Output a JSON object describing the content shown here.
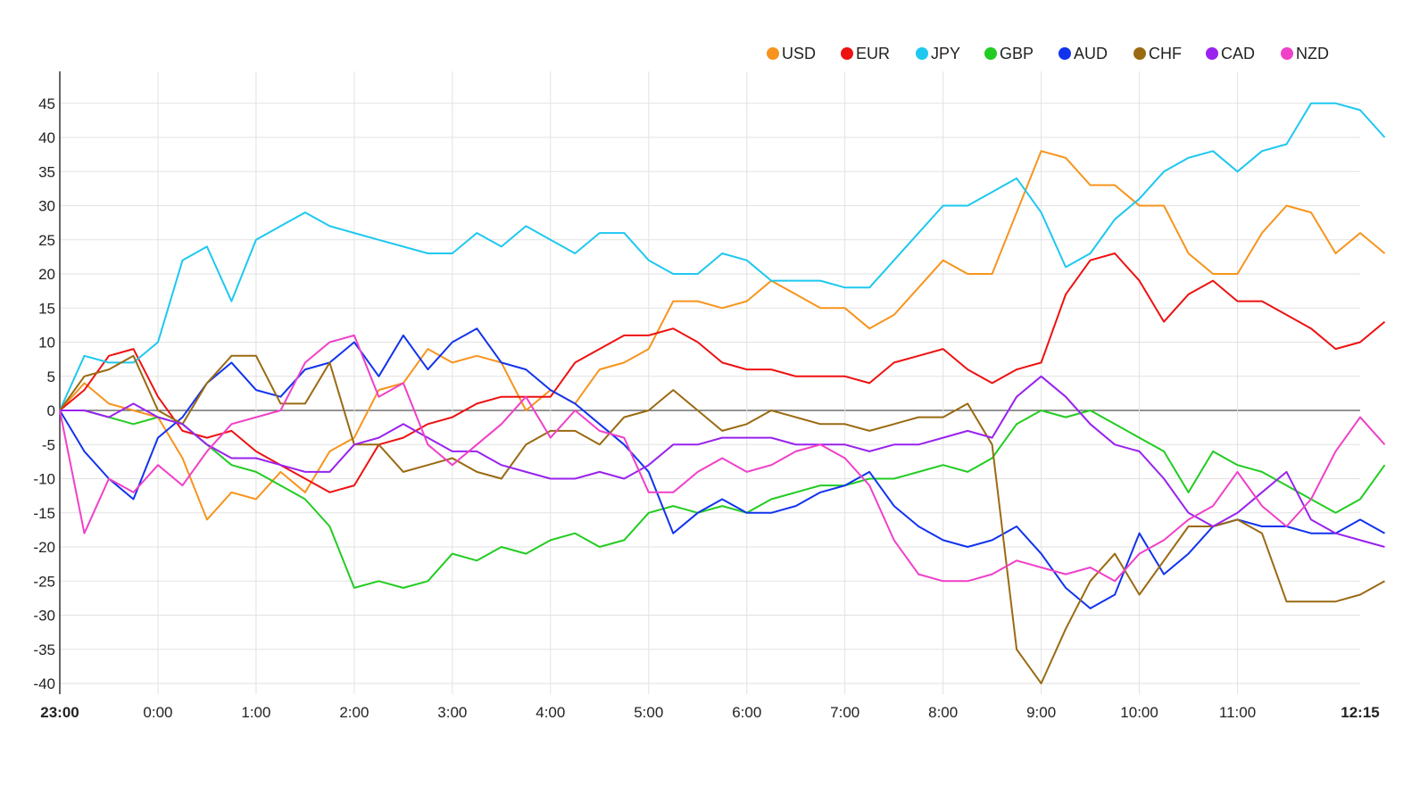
{
  "chart_data": {
    "type": "line",
    "title": "",
    "xlabel": "",
    "ylabel": "",
    "x_start": "23:00",
    "interval_minutes": 15,
    "ylim": [
      -42,
      50
    ],
    "grid": true,
    "legend_position": "top-right",
    "y_ticks": [
      -40,
      -35,
      -30,
      -25,
      -20,
      -15,
      -10,
      -5,
      0,
      5,
      10,
      15,
      20,
      25,
      30,
      35,
      40,
      45
    ],
    "x_ticks": [
      {
        "label": "23:00",
        "q": 0,
        "bold": true
      },
      {
        "label": "0:00",
        "q": 4
      },
      {
        "label": "1:00",
        "q": 8
      },
      {
        "label": "2:00",
        "q": 12
      },
      {
        "label": "3:00",
        "q": 16
      },
      {
        "label": "4:00",
        "q": 20
      },
      {
        "label": "5:00",
        "q": 24
      },
      {
        "label": "6:00",
        "q": 28
      },
      {
        "label": "7:00",
        "q": 32
      },
      {
        "label": "8:00",
        "q": 36
      },
      {
        "label": "9:00",
        "q": 40
      },
      {
        "label": "10:00",
        "q": 44
      },
      {
        "label": "11:00",
        "q": 48
      },
      {
        "label": "12:15",
        "q": 53,
        "bold": true
      }
    ],
    "series": [
      {
        "name": "USD",
        "color": "#f7941d",
        "values": [
          0,
          4,
          1,
          0,
          -1,
          -7,
          -16,
          -12,
          -13,
          -9,
          -12,
          -6,
          -4,
          3,
          4,
          9,
          7,
          8,
          7,
          0,
          3,
          1,
          6,
          7,
          9,
          16,
          16,
          15,
          16,
          19,
          17,
          15,
          15,
          12,
          14,
          18,
          22,
          20,
          20,
          29,
          38,
          37,
          33,
          33,
          30,
          30,
          23,
          20,
          20,
          26,
          30,
          29,
          23,
          26,
          23
        ]
      },
      {
        "name": "EUR",
        "color": "#ee1111",
        "values": [
          0,
          3,
          8,
          9,
          2,
          -3,
          -4,
          -3,
          -6,
          -8,
          -10,
          -12,
          -11,
          -5,
          -4,
          -2,
          -1,
          1,
          2,
          2,
          2,
          7,
          9,
          11,
          11,
          12,
          10,
          7,
          6,
          6,
          5,
          5,
          5,
          4,
          7,
          8,
          9,
          6,
          4,
          6,
          7,
          17,
          22,
          23,
          19,
          13,
          17,
          19,
          16,
          16,
          14,
          12,
          9,
          10,
          13
        ]
      },
      {
        "name": "JPY",
        "color": "#1ec8f0",
        "values": [
          0,
          8,
          7,
          7,
          10,
          22,
          24,
          16,
          25,
          27,
          29,
          27,
          26,
          25,
          24,
          23,
          23,
          26,
          24,
          27,
          25,
          23,
          26,
          26,
          22,
          20,
          20,
          23,
          22,
          19,
          19,
          19,
          18,
          18,
          22,
          26,
          30,
          30,
          32,
          34,
          29,
          21,
          23,
          28,
          31,
          35,
          37,
          38,
          35,
          38,
          39,
          45,
          45,
          44,
          40
        ]
      },
      {
        "name": "GBP",
        "color": "#22cc22",
        "values": [
          0,
          0,
          -1,
          -2,
          -1,
          -2,
          -5,
          -8,
          -9,
          -11,
          -13,
          -17,
          -26,
          -25,
          -26,
          -25,
          -21,
          -22,
          -20,
          -21,
          -19,
          -18,
          -20,
          -19,
          -15,
          -14,
          -15,
          -14,
          -15,
          -13,
          -12,
          -11,
          -11,
          -10,
          -10,
          -9,
          -8,
          -9,
          -7,
          -2,
          0,
          -1,
          0,
          -2,
          -4,
          -6,
          -12,
          -6,
          -8,
          -9,
          -11,
          -13,
          -15,
          -13,
          -8
        ]
      },
      {
        "name": "AUD",
        "color": "#1133ee",
        "values": [
          0,
          -6,
          -10,
          -13,
          -4,
          -1,
          4,
          7,
          3,
          2,
          6,
          7,
          10,
          5,
          11,
          6,
          10,
          12,
          7,
          6,
          3,
          1,
          -2,
          -5,
          -9,
          -18,
          -15,
          -13,
          -15,
          -15,
          -14,
          -12,
          -11,
          -9,
          -14,
          -17,
          -19,
          -20,
          -19,
          -17,
          -21,
          -26,
          -29,
          -27,
          -18,
          -24,
          -21,
          -17,
          -16,
          -17,
          -17,
          -18,
          -18,
          -16,
          -18
        ]
      },
      {
        "name": "CHF",
        "color": "#9a6a12",
        "values": [
          0,
          5,
          6,
          8,
          0,
          -2,
          4,
          8,
          8,
          1,
          1,
          7,
          -5,
          -5,
          -9,
          -8,
          -7,
          -9,
          -10,
          -5,
          -3,
          -3,
          -5,
          -1,
          0,
          3,
          0,
          -3,
          -2,
          0,
          -1,
          -2,
          -2,
          -3,
          -2,
          -1,
          -1,
          1,
          -5,
          -35,
          -40,
          -32,
          -25,
          -21,
          -27,
          -22,
          -17,
          -17,
          -16,
          -18,
          -28,
          -28,
          -28,
          -27,
          -25
        ]
      },
      {
        "name": "CAD",
        "color": "#9922ee",
        "values": [
          0,
          0,
          -1,
          1,
          -1,
          -2,
          -5,
          -7,
          -7,
          -8,
          -9,
          -9,
          -5,
          -4,
          -2,
          -4,
          -6,
          -6,
          -8,
          -9,
          -10,
          -10,
          -9,
          -10,
          -8,
          -5,
          -5,
          -4,
          -4,
          -4,
          -5,
          -5,
          -5,
          -6,
          -5,
          -5,
          -4,
          -3,
          -4,
          2,
          5,
          2,
          -2,
          -5,
          -6,
          -10,
          -15,
          -17,
          -15,
          -12,
          -9,
          -16,
          -18,
          -19,
          -20
        ]
      },
      {
        "name": "NZD",
        "color": "#f040c8",
        "values": [
          0,
          -18,
          -10,
          -12,
          -8,
          -11,
          -6,
          -2,
          -1,
          0,
          7,
          10,
          11,
          2,
          4,
          -5,
          -8,
          -5,
          -2,
          2,
          -4,
          0,
          -3,
          -4,
          -12,
          -12,
          -9,
          -7,
          -9,
          -8,
          -6,
          -5,
          -7,
          -11,
          -19,
          -24,
          -25,
          -25,
          -24,
          -22,
          -23,
          -24,
          -23,
          -25,
          -21,
          -19,
          -16,
          -14,
          -9,
          -14,
          -17,
          -13,
          -6,
          -1,
          -5
        ]
      }
    ]
  }
}
